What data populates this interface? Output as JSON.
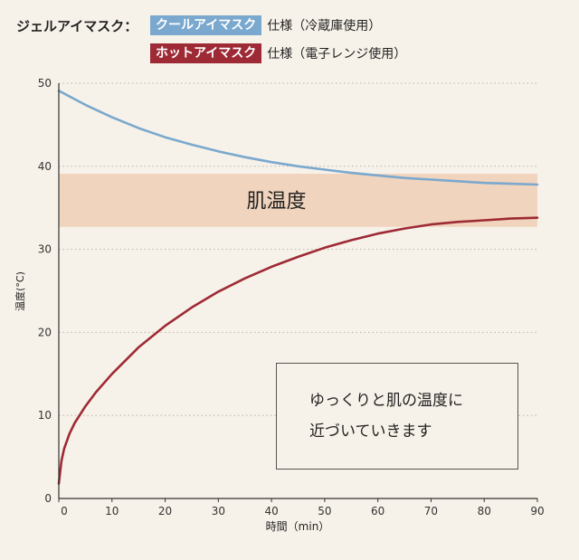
{
  "legend": {
    "title": "ジェルアイマスク：",
    "items": [
      {
        "label": "クールアイマスク",
        "spec": "仕様（冷蔵庫使用）"
      },
      {
        "label": "ホットアイマスク",
        "spec": "仕様（電子レンジ使用）"
      }
    ]
  },
  "annotation": {
    "line1": "ゆっくりと肌の温度に",
    "line2": "近づいていきます"
  },
  "chart_data": {
    "type": "line",
    "xlabel": "時間（min）",
    "ylabel": "温度(°C)",
    "xlim": [
      0,
      90
    ],
    "ylim": [
      0,
      50
    ],
    "x_ticks": [
      0,
      10,
      20,
      30,
      40,
      50,
      60,
      70,
      80,
      90
    ],
    "y_ticks": [
      0,
      10,
      20,
      30,
      40,
      50
    ],
    "grid": "horizontal dotted",
    "band": {
      "label": "肌温度",
      "y_range": [
        32.7,
        39.1
      ],
      "color": "#f1d4bd"
    },
    "series": [
      {
        "name": "クールアイマスク",
        "color": "#7aa8ce",
        "x": [
          0,
          5,
          10,
          15,
          20,
          25,
          30,
          35,
          40,
          45,
          50,
          55,
          60,
          65,
          70,
          75,
          80,
          85,
          90
        ],
        "values": [
          49.1,
          47.4,
          45.9,
          44.6,
          43.5,
          42.6,
          41.8,
          41.1,
          40.5,
          40.0,
          39.6,
          39.2,
          38.9,
          38.6,
          38.4,
          38.2,
          38.0,
          37.9,
          37.8
        ]
      },
      {
        "name": "ホットアイマスク",
        "color": "#9e2a35",
        "x": [
          0,
          0.5,
          1,
          2,
          3,
          5,
          7,
          10,
          15,
          20,
          25,
          30,
          35,
          40,
          45,
          50,
          55,
          60,
          65,
          70,
          75,
          80,
          85,
          90
        ],
        "values": [
          1.8,
          4.5,
          6.0,
          7.8,
          9.1,
          11.1,
          12.8,
          15.0,
          18.2,
          20.8,
          23.0,
          24.9,
          26.5,
          27.9,
          29.1,
          30.2,
          31.1,
          31.9,
          32.5,
          33.0,
          33.3,
          33.5,
          33.7,
          33.8
        ]
      }
    ]
  }
}
